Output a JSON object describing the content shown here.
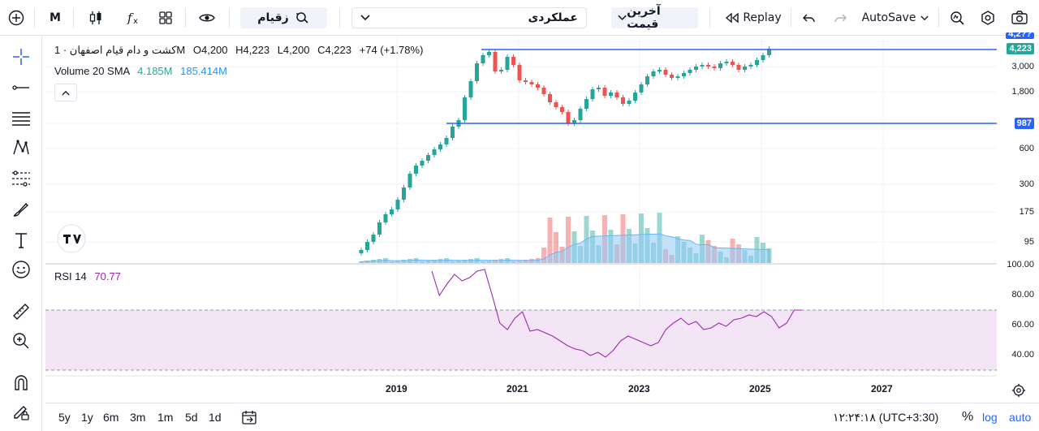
{
  "toolbar": {
    "interval": "M",
    "symbol_search": "زقیام",
    "layout_name": "عملکردی",
    "price_type": "آخرین قیمت",
    "replay": "Replay",
    "autosave": "AutoSave"
  },
  "legend": {
    "title": "کشت و دام قیام اصفهان · 1M",
    "open": "O4,200",
    "high": "H4,223",
    "low": "L4,200",
    "close": "C4,223",
    "change": "+74 (+1.78%)",
    "volume_label": "Volume 20 SMA",
    "volume_value": "4.185M",
    "volume_sma": "185.414M",
    "rsi_label": "RSI 14",
    "rsi_value": "70.77"
  },
  "price_axis": {
    "labels": [
      "3,000",
      "1,800",
      "600",
      "300",
      "175",
      "95"
    ],
    "current_price_tag": "4,223",
    "line_tag": "987",
    "top_partial": "4,2??"
  },
  "rsi_axis": {
    "labels": [
      "100.00",
      "80.00",
      "60.00",
      "40.00"
    ]
  },
  "time_axis": {
    "labels": [
      "2019",
      "2021",
      "2023",
      "2025",
      "2027"
    ]
  },
  "bottom": {
    "ranges": [
      "5y",
      "1y",
      "6m",
      "3m",
      "1m",
      "5d",
      "1d"
    ],
    "clock": "۱۲:۲۴:۱۸ (UTC+3:30)",
    "percent": "%",
    "log": "log",
    "auto": "auto"
  },
  "colors": {
    "up": "#26a69a",
    "down": "#ef5350",
    "line": "#2962ff",
    "rsi": "#9c27b0",
    "accent": "#2962ff"
  },
  "icons": [
    "plus-circle-icon",
    "candles-icon",
    "fx-icon",
    "grid-icon",
    "eye-icon",
    "search-icon",
    "chevron-down-icon",
    "replay-icon",
    "undo-icon",
    "redo-icon",
    "lens-icon",
    "settings-icon",
    "camera-icon",
    "crosshair-icon",
    "trend-line-icon",
    "h-lines-icon",
    "pattern-icon",
    "fib-icon",
    "brush-icon",
    "text-icon",
    "emoji-icon",
    "ruler-icon",
    "zoom-icon",
    "magnet-icon",
    "lock-pencil-icon",
    "calendar-icon",
    "gear-icon",
    "scroll-up-icon"
  ]
}
